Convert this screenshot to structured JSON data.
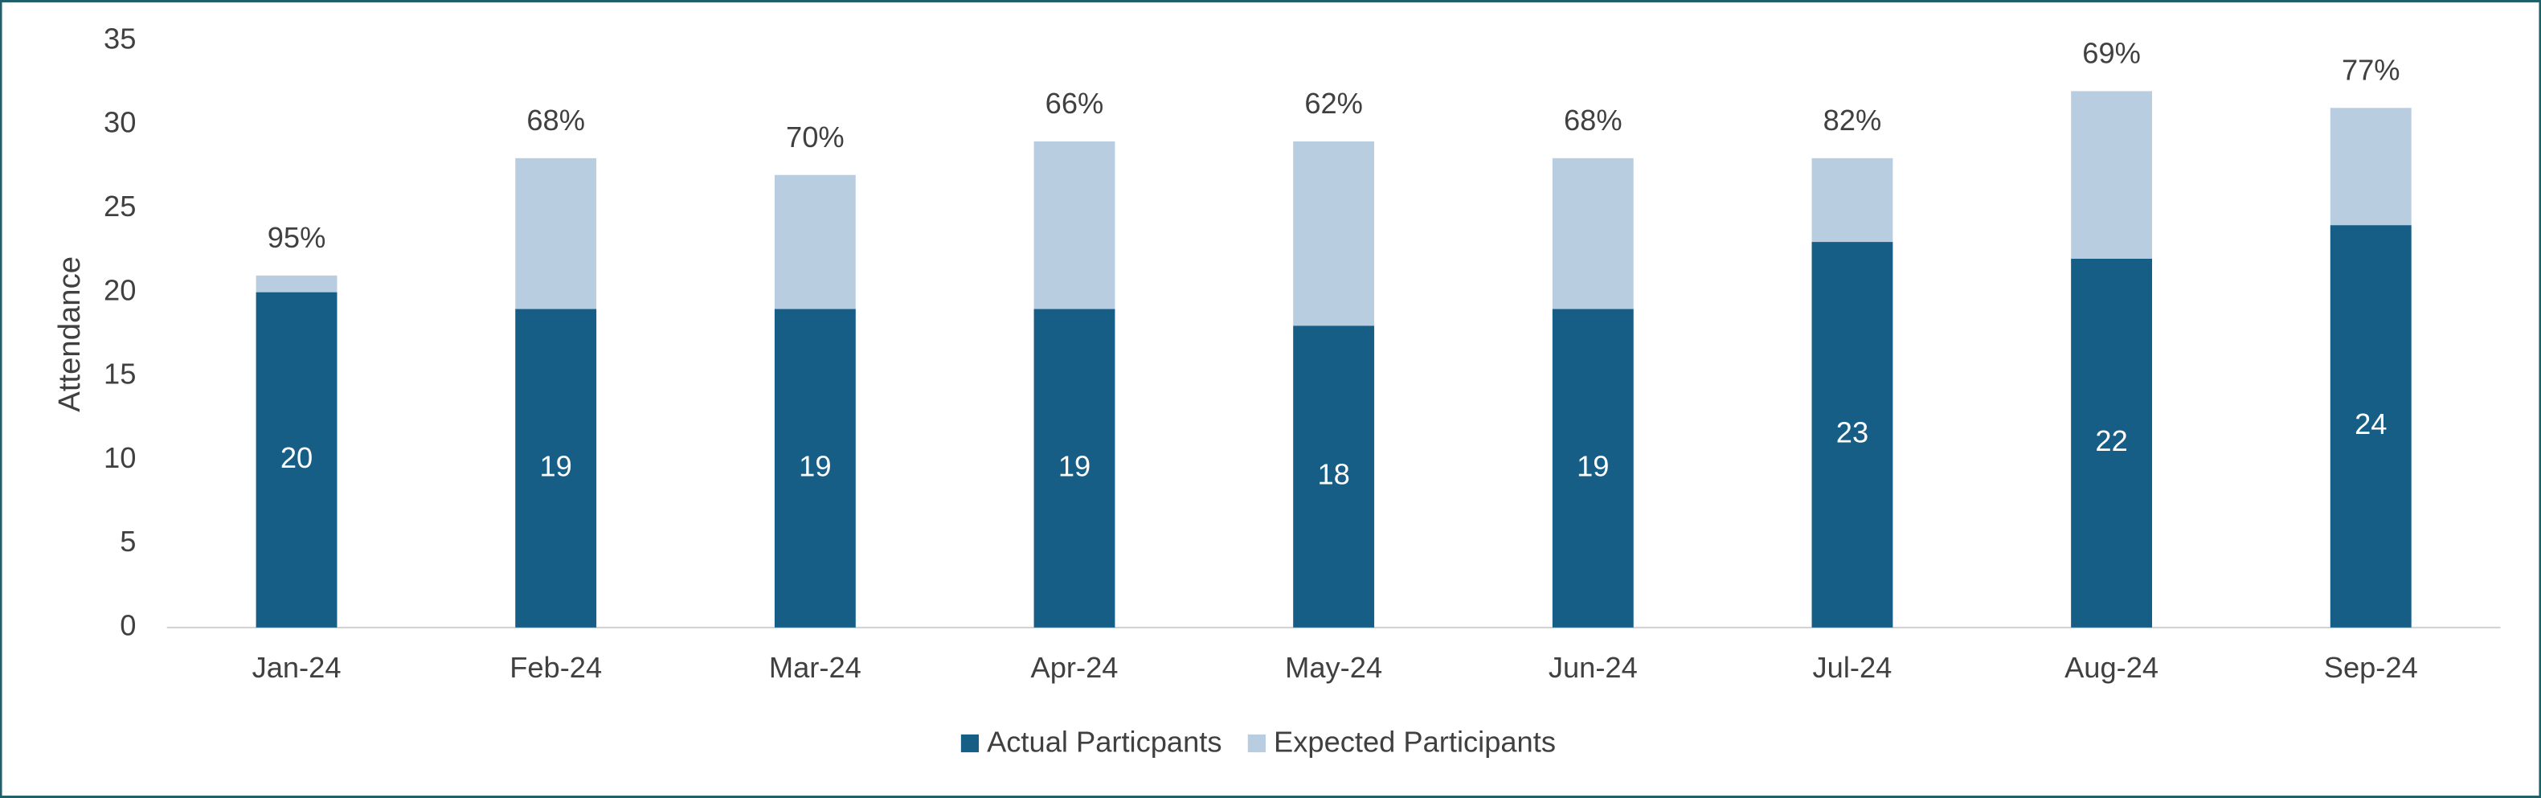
{
  "chart_data": {
    "type": "bar",
    "y_axis_label": "Attendance",
    "categories": [
      "Jan-24",
      "Feb-24",
      "Mar-24",
      "Apr-24",
      "May-24",
      "Jun-24",
      "Jul-24",
      "Aug-24",
      "Sep-24"
    ],
    "series": [
      {
        "name": "Actual Particpants",
        "color": "#175e87",
        "values": [
          20,
          19,
          19,
          19,
          18,
          19,
          23,
          22,
          24
        ]
      },
      {
        "name": "Expected Participants",
        "color": "#b9cde0",
        "values": [
          21,
          28,
          27,
          29,
          29,
          28,
          28,
          32,
          31
        ]
      }
    ],
    "annotations": [
      "95%",
      "68%",
      "70%",
      "66%",
      "62%",
      "68%",
      "82%",
      "69%",
      "77%"
    ],
    "ylim": [
      0,
      35
    ],
    "yticks": [
      0,
      5,
      10,
      15,
      20,
      25,
      30,
      35
    ],
    "grid": false,
    "legend": "bottom"
  }
}
